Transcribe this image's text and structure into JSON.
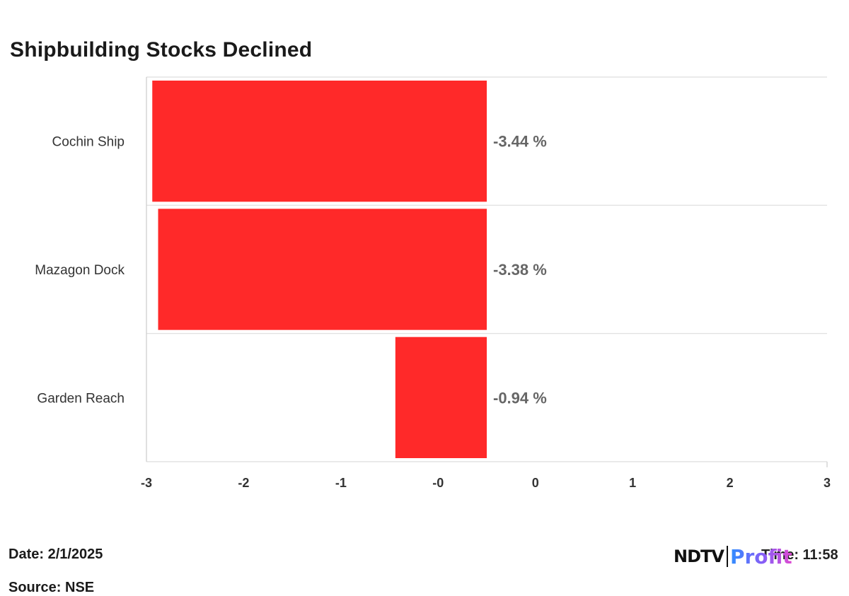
{
  "chart_data": {
    "type": "bar",
    "orientation": "horizontal",
    "title": "Shipbuilding Stocks Declined",
    "categories": [
      "Cochin Ship",
      "Mazagon Dock",
      "Garden Reach"
    ],
    "values": [
      -3.44,
      -3.38,
      -0.94
    ],
    "value_labels": [
      "-3.44 %",
      "-3.38 %",
      "-0.94 %"
    ],
    "x_ticks": [
      "-3",
      "-2",
      "-1",
      "-0",
      "0",
      "1",
      "2",
      "3"
    ],
    "xlim": [
      -3.5,
      3.5
    ],
    "grid": true,
    "bar_color": "#ff2929"
  },
  "footer": {
    "date": "Date: 2/1/2025",
    "time": "Time: 11:58",
    "source": "Source: NSE"
  },
  "logo": {
    "ndtv": "NDTV",
    "profit": "Profit"
  }
}
